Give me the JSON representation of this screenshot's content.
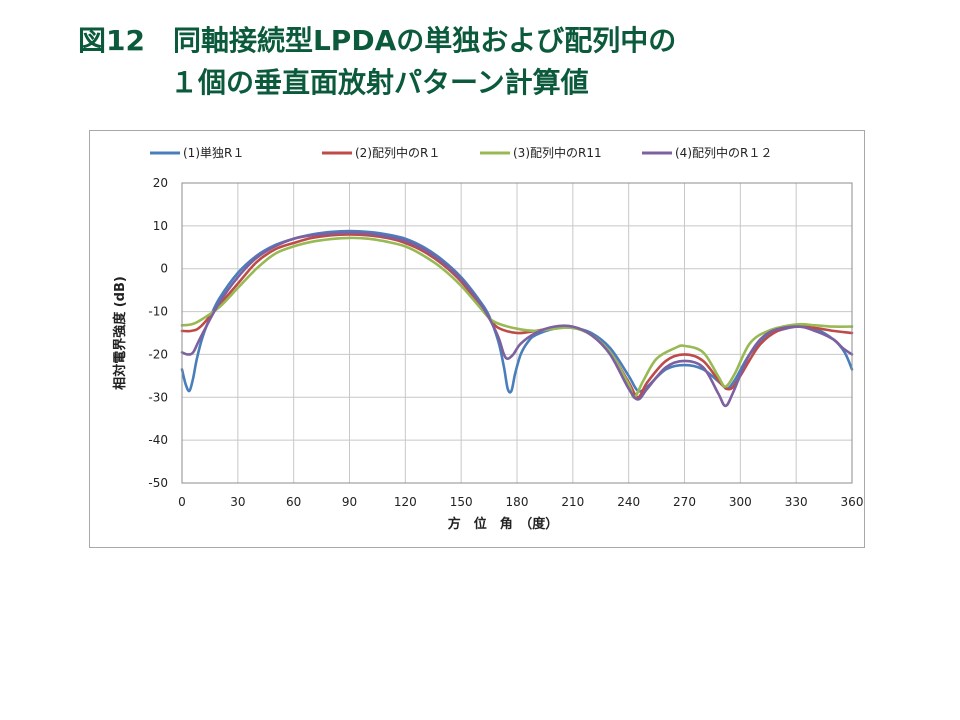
{
  "slide": {
    "title_line1": "図12　同軸接続型LPDAの単独および配列中の",
    "title_line2": "１個の垂直面放射パターン計算値"
  },
  "chart_data": {
    "type": "line",
    "title": "",
    "xlabel": "方　位　角　（度）",
    "ylabel": "相対電界強度 (dB)",
    "xlim": [
      0,
      360
    ],
    "ylim": [
      -50,
      20
    ],
    "xticks": [
      0,
      30,
      60,
      90,
      120,
      150,
      180,
      210,
      240,
      270,
      300,
      330,
      360
    ],
    "yticks": [
      20,
      10,
      0,
      -10,
      -20,
      -30,
      -40,
      -50
    ],
    "grid": true,
    "legend_position": "top",
    "series": [
      {
        "name": "(1)単独R１",
        "color": "#4a7ebb",
        "points": [
          [
            0,
            -23.5
          ],
          [
            2,
            -27
          ],
          [
            4,
            -28.5
          ],
          [
            6,
            -25.5
          ],
          [
            8,
            -21
          ],
          [
            11,
            -16
          ],
          [
            15,
            -11.5
          ],
          [
            20,
            -7
          ],
          [
            30,
            -1
          ],
          [
            40,
            3
          ],
          [
            50,
            5.5
          ],
          [
            60,
            7
          ],
          [
            70,
            8
          ],
          [
            80,
            8.6
          ],
          [
            90,
            8.8
          ],
          [
            100,
            8.6
          ],
          [
            110,
            8
          ],
          [
            120,
            7
          ],
          [
            130,
            5
          ],
          [
            140,
            2
          ],
          [
            150,
            -2
          ],
          [
            160,
            -7.5
          ],
          [
            165,
            -11
          ],
          [
            170,
            -17
          ],
          [
            173,
            -23
          ],
          [
            175,
            -28
          ],
          [
            177,
            -28.5
          ],
          [
            179,
            -24.5
          ],
          [
            182,
            -20
          ],
          [
            186,
            -17
          ],
          [
            190,
            -15.5
          ],
          [
            200,
            -14
          ],
          [
            210,
            -13.8
          ],
          [
            220,
            -15
          ],
          [
            230,
            -18.5
          ],
          [
            240,
            -25
          ],
          [
            245,
            -28.5
          ],
          [
            250,
            -27.5
          ],
          [
            260,
            -23.5
          ],
          [
            270,
            -22.5
          ],
          [
            280,
            -23.5
          ],
          [
            290,
            -27
          ],
          [
            293,
            -28
          ],
          [
            297,
            -26
          ],
          [
            305,
            -20
          ],
          [
            315,
            -15.5
          ],
          [
            330,
            -13.5
          ],
          [
            340,
            -14
          ],
          [
            350,
            -16.5
          ],
          [
            356,
            -19.5
          ],
          [
            360,
            -23.5
          ]
        ]
      },
      {
        "name": "(2)配列中のR１",
        "color": "#be4b48",
        "points": [
          [
            0,
            -14.5
          ],
          [
            5,
            -14.5
          ],
          [
            10,
            -13.5
          ],
          [
            20,
            -8.5
          ],
          [
            30,
            -3.5
          ],
          [
            40,
            1.5
          ],
          [
            50,
            4.5
          ],
          [
            60,
            6
          ],
          [
            70,
            7.2
          ],
          [
            80,
            7.8
          ],
          [
            90,
            8
          ],
          [
            100,
            7.8
          ],
          [
            110,
            7.2
          ],
          [
            120,
            6
          ],
          [
            130,
            4
          ],
          [
            140,
            1
          ],
          [
            150,
            -3
          ],
          [
            160,
            -8.5
          ],
          [
            165,
            -11.5
          ],
          [
            170,
            -13.8
          ],
          [
            180,
            -15
          ],
          [
            190,
            -14.5
          ],
          [
            200,
            -13.8
          ],
          [
            210,
            -13.6
          ],
          [
            220,
            -15.5
          ],
          [
            230,
            -19.5
          ],
          [
            240,
            -26.5
          ],
          [
            245,
            -30
          ],
          [
            250,
            -26.5
          ],
          [
            260,
            -21.5
          ],
          [
            270,
            -20
          ],
          [
            280,
            -21.5
          ],
          [
            290,
            -27
          ],
          [
            295,
            -28
          ],
          [
            300,
            -25
          ],
          [
            310,
            -18
          ],
          [
            320,
            -14.5
          ],
          [
            330,
            -13.5
          ],
          [
            340,
            -13.8
          ],
          [
            350,
            -14.5
          ],
          [
            360,
            -15
          ]
        ]
      },
      {
        "name": "(3)配列中のR11",
        "color": "#98b954",
        "points": [
          [
            0,
            -13.2
          ],
          [
            5,
            -13
          ],
          [
            10,
            -12
          ],
          [
            20,
            -9
          ],
          [
            30,
            -4.5
          ],
          [
            40,
            0
          ],
          [
            50,
            3.5
          ],
          [
            60,
            5.2
          ],
          [
            70,
            6.3
          ],
          [
            80,
            6.9
          ],
          [
            90,
            7.2
          ],
          [
            100,
            7
          ],
          [
            110,
            6.3
          ],
          [
            120,
            5.2
          ],
          [
            130,
            3
          ],
          [
            140,
            0
          ],
          [
            150,
            -4
          ],
          [
            160,
            -9
          ],
          [
            165,
            -11.5
          ],
          [
            170,
            -12.8
          ],
          [
            180,
            -14
          ],
          [
            190,
            -14.5
          ],
          [
            200,
            -14
          ],
          [
            210,
            -13.8
          ],
          [
            220,
            -15.5
          ],
          [
            230,
            -19.5
          ],
          [
            240,
            -27
          ],
          [
            243,
            -30
          ],
          [
            248,
            -26
          ],
          [
            255,
            -21
          ],
          [
            265,
            -18.5
          ],
          [
            270,
            -18
          ],
          [
            280,
            -19.5
          ],
          [
            288,
            -25
          ],
          [
            292,
            -27.5
          ],
          [
            297,
            -24.5
          ],
          [
            305,
            -17.5
          ],
          [
            315,
            -14.5
          ],
          [
            330,
            -13
          ],
          [
            340,
            -13.2
          ],
          [
            350,
            -13.5
          ],
          [
            360,
            -13.5
          ]
        ]
      },
      {
        "name": "(4)配列中のR１２",
        "color": "#7d60a0",
        "points": [
          [
            0,
            -19.5
          ],
          [
            3,
            -20
          ],
          [
            6,
            -19.5
          ],
          [
            10,
            -16
          ],
          [
            20,
            -8
          ],
          [
            30,
            -2
          ],
          [
            40,
            2.5
          ],
          [
            50,
            5.2
          ],
          [
            60,
            7
          ],
          [
            70,
            7.8
          ],
          [
            80,
            8.2
          ],
          [
            90,
            8.4
          ],
          [
            100,
            8.2
          ],
          [
            110,
            7.5
          ],
          [
            120,
            6.5
          ],
          [
            130,
            4.5
          ],
          [
            140,
            1.5
          ],
          [
            150,
            -2.5
          ],
          [
            160,
            -8
          ],
          [
            165,
            -11.5
          ],
          [
            170,
            -16
          ],
          [
            173,
            -20
          ],
          [
            175,
            -21
          ],
          [
            178,
            -20
          ],
          [
            182,
            -17.5
          ],
          [
            190,
            -15
          ],
          [
            200,
            -13.5
          ],
          [
            210,
            -13.5
          ],
          [
            220,
            -15.5
          ],
          [
            230,
            -20
          ],
          [
            240,
            -28
          ],
          [
            245,
            -30.5
          ],
          [
            250,
            -28
          ],
          [
            260,
            -23
          ],
          [
            270,
            -21.5
          ],
          [
            280,
            -23
          ],
          [
            288,
            -29
          ],
          [
            292,
            -32
          ],
          [
            296,
            -29
          ],
          [
            305,
            -20
          ],
          [
            315,
            -15
          ],
          [
            330,
            -13.5
          ],
          [
            340,
            -14.5
          ],
          [
            350,
            -16.5
          ],
          [
            355,
            -18.5
          ],
          [
            360,
            -20
          ]
        ]
      }
    ]
  }
}
